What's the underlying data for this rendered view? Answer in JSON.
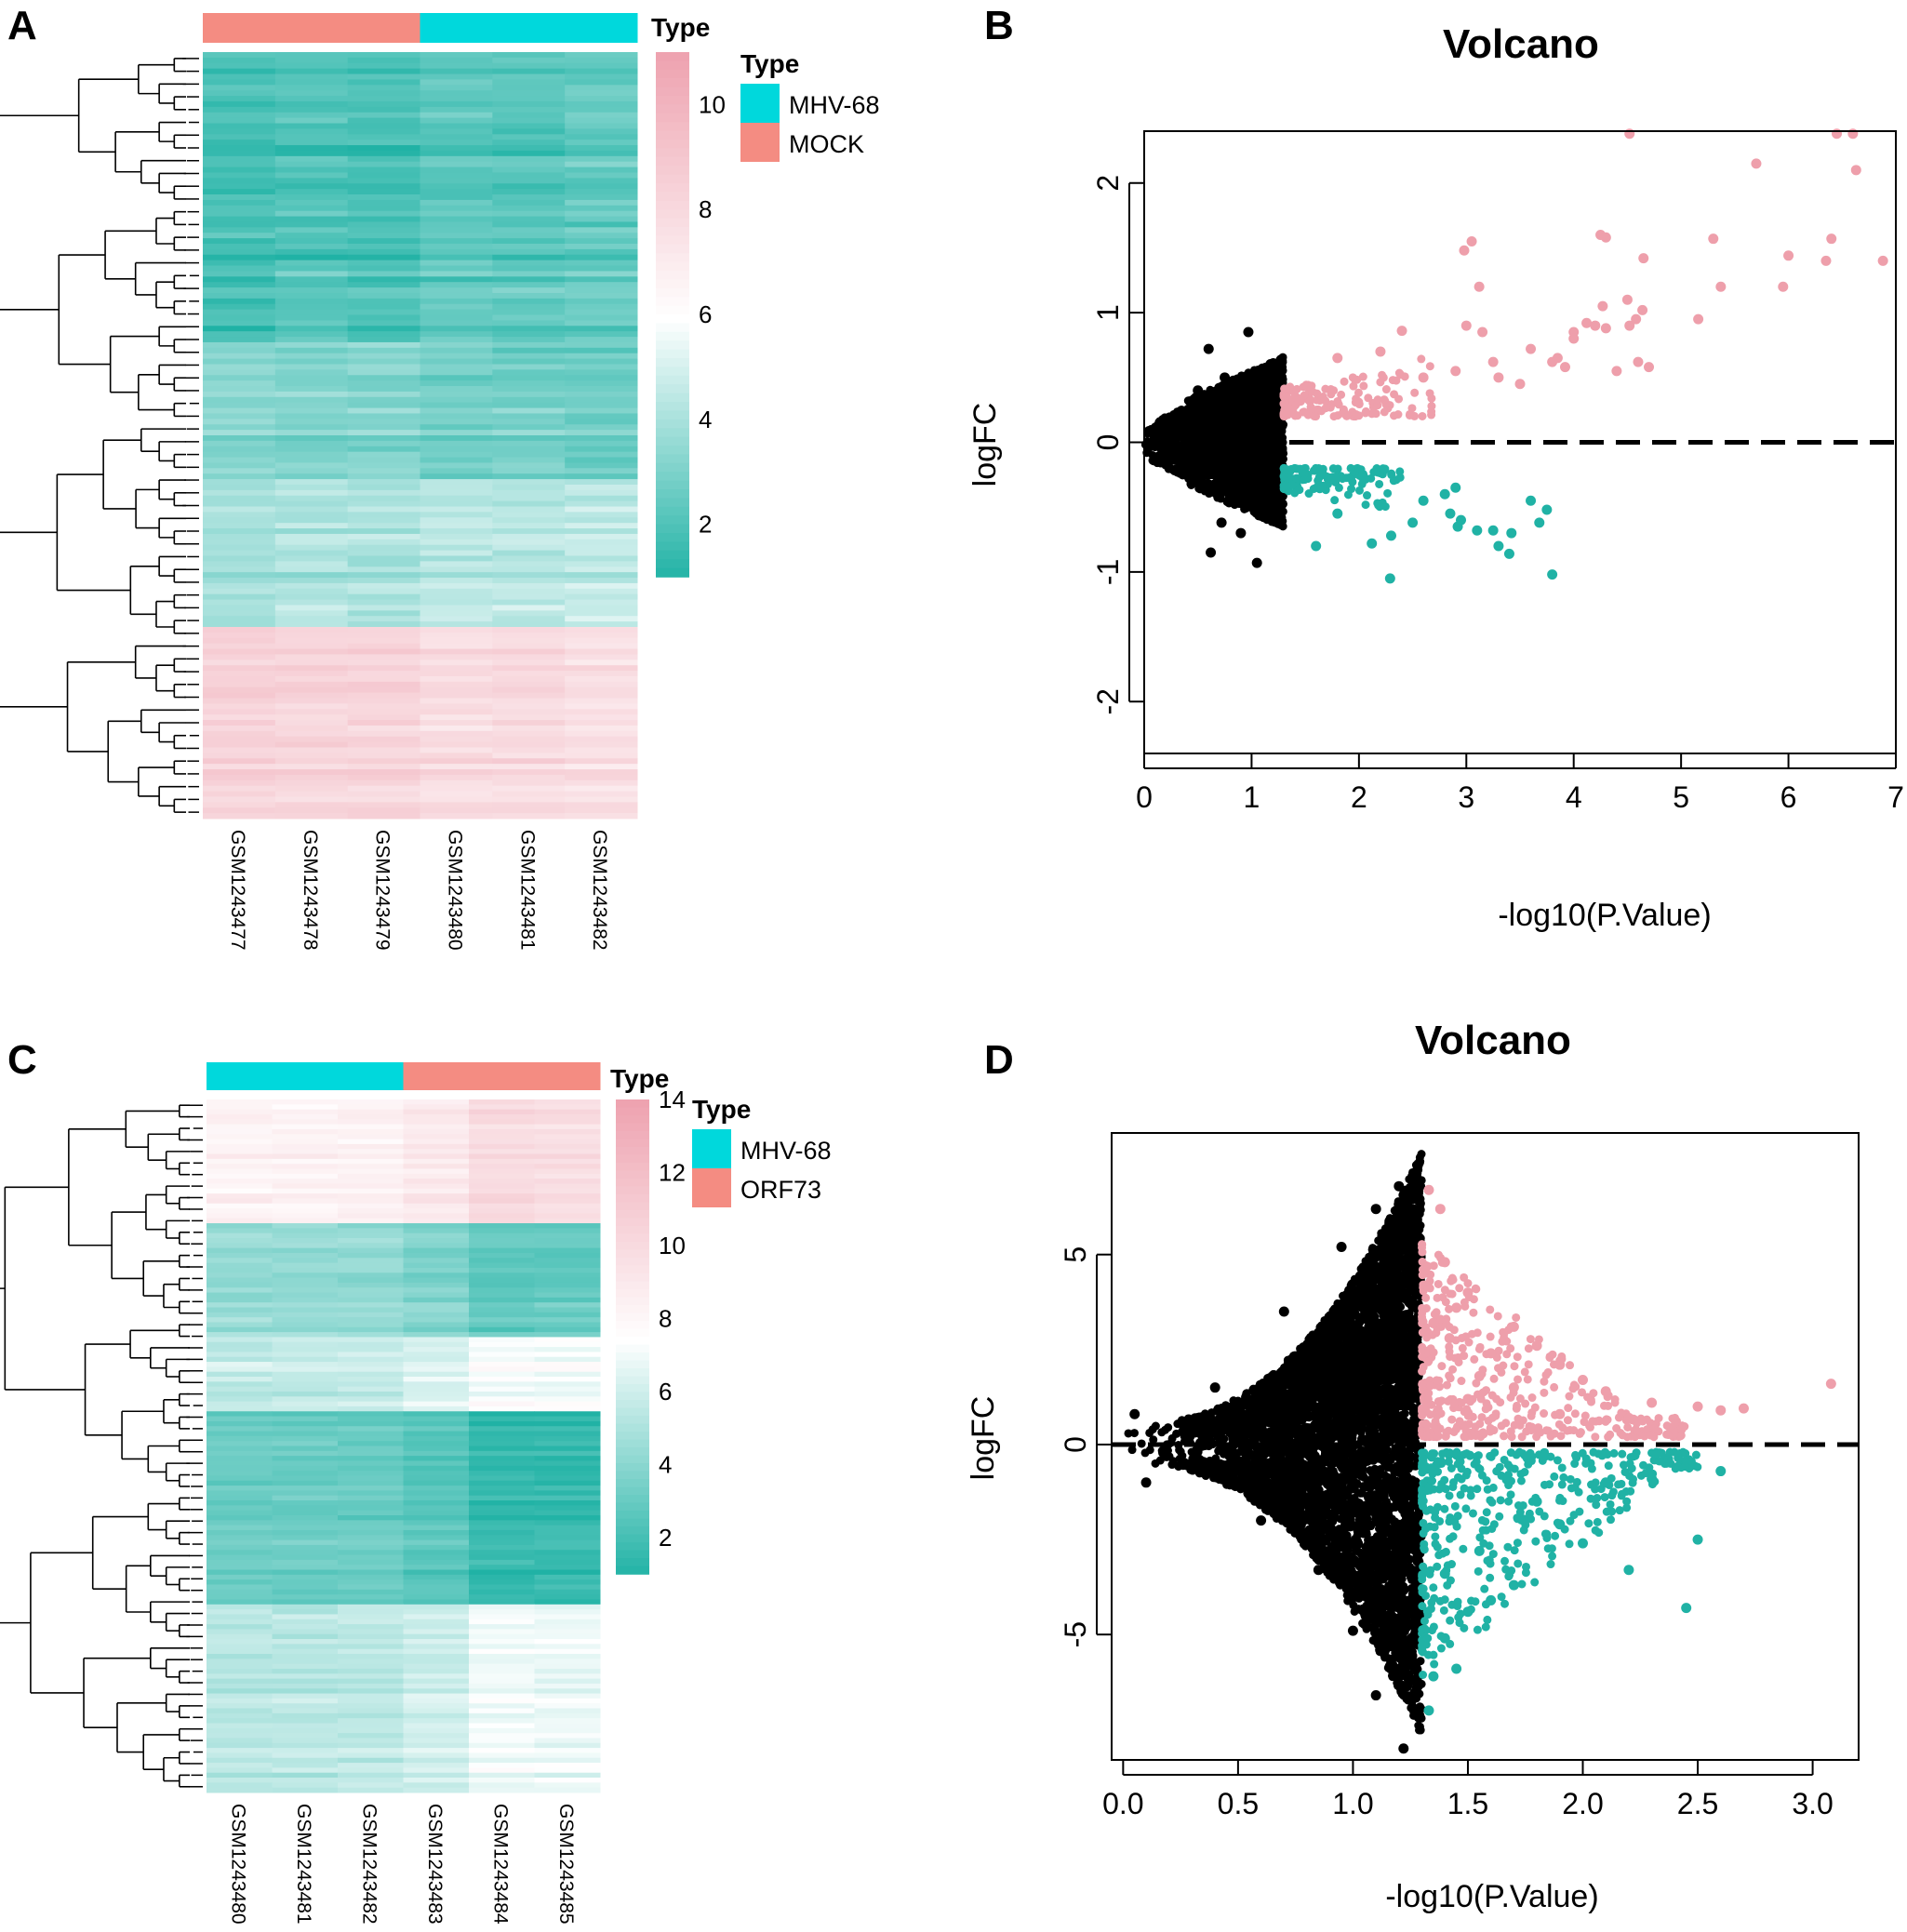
{
  "panels": {
    "A": {
      "label": "A",
      "type_label": "Type",
      "legend_title": "Type",
      "legend": [
        {
          "name": "MHV-68",
          "color": "#00d8dc"
        },
        {
          "name": "MOCK",
          "color": "#f48c82"
        }
      ],
      "samples": [
        "GSM1243477",
        "GSM1243478",
        "GSM1243479",
        "GSM1243480",
        "GSM1243481",
        "GSM1243482"
      ],
      "sample_groups": [
        "MOCK",
        "MOCK",
        "MOCK",
        "MHV-68",
        "MHV-68",
        "MHV-68"
      ],
      "colorbar_ticks": [
        2,
        4,
        6,
        8,
        10
      ],
      "colorbar_range": [
        1,
        11
      ]
    },
    "B": {
      "label": "B",
      "title": "Volcano",
      "xlabel": "-log10(P.Value)",
      "ylabel": "logFC",
      "xticks": [
        0,
        1,
        2,
        3,
        4,
        5,
        6,
        7
      ],
      "yticks": [
        -2,
        -1,
        0,
        1,
        2
      ]
    },
    "C": {
      "label": "C",
      "type_label": "Type",
      "legend_title": "Type",
      "legend": [
        {
          "name": "MHV-68",
          "color": "#00d8dc"
        },
        {
          "name": "ORF73",
          "color": "#f48c82"
        }
      ],
      "samples": [
        "GSM1243480",
        "GSM1243481",
        "GSM1243482",
        "GSM1243483",
        "GSM1243484",
        "GSM1243485"
      ],
      "sample_groups": [
        "MHV-68",
        "MHV-68",
        "MHV-68",
        "ORF73",
        "ORF73",
        "ORF73"
      ],
      "colorbar_ticks": [
        2,
        4,
        6,
        8,
        10,
        12,
        14
      ],
      "colorbar_range": [
        1,
        14
      ]
    },
    "D": {
      "label": "D",
      "title": "Volcano",
      "xlabel": "-log10(P.Value)",
      "ylabel": "logFC",
      "xticks": [
        "0.0",
        "0.5",
        "1.0",
        "1.5",
        "2.0",
        "2.5",
        "3.0"
      ],
      "yticks": [
        -5,
        0,
        5
      ]
    }
  },
  "chart_data": [
    {
      "type": "heatmap",
      "panel": "A",
      "columns": [
        "GSM1243477",
        "GSM1243478",
        "GSM1243479",
        "GSM1243480",
        "GSM1243481",
        "GSM1243482"
      ],
      "column_annotation": [
        "MOCK",
        "MOCK",
        "MOCK",
        "MHV-68",
        "MHV-68",
        "MHV-68"
      ],
      "row_blocks": [
        {
          "rows": 0.38,
          "value": 2.2
        },
        {
          "rows": 0.18,
          "value": 3.2
        },
        {
          "rows": 0.19,
          "value": 4.2
        },
        {
          "rows": 0.25,
          "value": 8.0
        }
      ],
      "color_scale": {
        "low": "#20b2a5",
        "mid": "#ffffff",
        "high": "#eea3b0",
        "range": [
          1,
          11
        ]
      },
      "legend": [
        "MHV-68",
        "MOCK"
      ]
    },
    {
      "type": "scatter",
      "panel": "B",
      "title": "Volcano",
      "xlabel": "-log10(P.Value)",
      "ylabel": "logFC",
      "xlim": [
        0,
        7
      ],
      "ylim": [
        -2.4,
        2.4
      ],
      "threshold_x": 1.3,
      "hline_y": 0,
      "series": [
        {
          "name": "",
          "color": "#000000",
          "points": [
            [
              0.6,
              0.72
            ],
            [
              0.97,
              0.85
            ],
            [
              0.75,
              0.5
            ],
            [
              1.1,
              0.55
            ],
            [
              1.2,
              0.52
            ],
            [
              0.5,
              0.4
            ],
            [
              0.62,
              -0.85
            ],
            [
              1.05,
              -0.93
            ],
            [
              0.9,
              -0.7
            ],
            [
              0.72,
              -0.62
            ],
            [
              1.15,
              -0.55
            ],
            [
              0.3,
              0.2
            ],
            [
              0.2,
              -0.15
            ]
          ]
        },
        {
          "name": "",
          "color": "#ee9fab",
          "points": [
            [
              4.52,
              2.38
            ],
            [
              6.45,
              2.38
            ],
            [
              6.6,
              2.38
            ],
            [
              6.63,
              2.1
            ],
            [
              5.7,
              2.15
            ],
            [
              3.05,
              1.55
            ],
            [
              2.98,
              1.48
            ],
            [
              4.25,
              1.6
            ],
            [
              4.3,
              1.58
            ],
            [
              4.65,
              1.42
            ],
            [
              5.3,
              1.57
            ],
            [
              6.4,
              1.57
            ],
            [
              6.0,
              1.44
            ],
            [
              6.35,
              1.4
            ],
            [
              6.88,
              1.4
            ],
            [
              5.37,
              1.2
            ],
            [
              5.95,
              1.2
            ],
            [
              3.12,
              1.2
            ],
            [
              4.5,
              1.1
            ],
            [
              4.64,
              1.02
            ],
            [
              4.27,
              1.05
            ],
            [
              3.15,
              0.85
            ],
            [
              3.0,
              0.9
            ],
            [
              4.2,
              0.9
            ],
            [
              4.0,
              0.85
            ],
            [
              4.3,
              0.88
            ],
            [
              4.58,
              0.95
            ],
            [
              5.16,
              0.95
            ],
            [
              3.6,
              0.72
            ],
            [
              3.85,
              0.65
            ],
            [
              3.8,
              0.62
            ],
            [
              4.7,
              0.58
            ],
            [
              4.6,
              0.62
            ],
            [
              4.0,
              0.8
            ],
            [
              4.12,
              0.92
            ],
            [
              4.52,
              0.9
            ],
            [
              2.4,
              0.86
            ],
            [
              2.2,
              0.7
            ],
            [
              1.8,
              0.65
            ],
            [
              3.5,
              0.45
            ],
            [
              3.3,
              0.5
            ],
            [
              3.25,
              0.62
            ],
            [
              2.9,
              0.55
            ],
            [
              2.6,
              0.5
            ],
            [
              4.4,
              0.55
            ],
            [
              3.92,
              0.58
            ]
          ]
        },
        {
          "name": "",
          "color": "#20b2a5",
          "points": [
            [
              2.29,
              -1.05
            ],
            [
              3.8,
              -1.02
            ],
            [
              3.4,
              -0.86
            ],
            [
              3.3,
              -0.8
            ],
            [
              1.6,
              -0.8
            ],
            [
              2.12,
              -0.78
            ],
            [
              2.3,
              -0.72
            ],
            [
              2.92,
              -0.65
            ],
            [
              3.1,
              -0.68
            ],
            [
              3.68,
              -0.62
            ],
            [
              3.75,
              -0.52
            ],
            [
              3.6,
              -0.45
            ],
            [
              2.95,
              -0.6
            ],
            [
              2.85,
              -0.55
            ],
            [
              3.25,
              -0.68
            ],
            [
              3.42,
              -0.7
            ],
            [
              2.5,
              -0.62
            ],
            [
              1.8,
              -0.55
            ],
            [
              2.6,
              -0.45
            ],
            [
              2.8,
              -0.4
            ],
            [
              2.9,
              -0.35
            ]
          ]
        }
      ]
    },
    {
      "type": "heatmap",
      "panel": "C",
      "columns": [
        "GSM1243480",
        "GSM1243481",
        "GSM1243482",
        "GSM1243483",
        "GSM1243484",
        "GSM1243485"
      ],
      "column_annotation": [
        "MHV-68",
        "MHV-68",
        "MHV-68",
        "ORF73",
        "ORF73",
        "ORF73"
      ],
      "row_blocks": [
        {
          "rows": 0.18,
          "value": 8.8
        },
        {
          "rows": 0.16,
          "value": 4.0
        },
        {
          "rows": 0.11,
          "value": 6.2
        },
        {
          "rows": 0.28,
          "value": 2.8
        },
        {
          "rows": 0.27,
          "value": 5.8
        }
      ],
      "color_scale": {
        "low": "#20b2a5",
        "mid": "#ffffff",
        "high": "#eea3b0",
        "range": [
          1,
          14
        ]
      },
      "legend": [
        "MHV-68",
        "ORF73"
      ]
    },
    {
      "type": "scatter",
      "panel": "D",
      "title": "Volcano",
      "xlabel": "-log10(P.Value)",
      "ylabel": "logFC",
      "xlim": [
        -0.05,
        3.2
      ],
      "ylim": [
        -8.3,
        8.2
      ],
      "threshold_x": 1.3,
      "hline_y": 0,
      "series": [
        {
          "name": "",
          "color": "#000000",
          "points": [
            [
              1.2,
              6.8
            ],
            [
              1.1,
              6.2
            ],
            [
              0.95,
              5.2
            ],
            [
              0.7,
              3.5
            ],
            [
              0.4,
              1.5
            ],
            [
              0.6,
              -2.0
            ],
            [
              0.85,
              -3.3
            ],
            [
              1.0,
              -4.9
            ],
            [
              1.1,
              -6.6
            ],
            [
              1.22,
              -8.0
            ],
            [
              0.05,
              0.8
            ],
            [
              0.1,
              -1.0
            ]
          ]
        },
        {
          "name": "",
          "color": "#ee9fab",
          "points": [
            [
              3.08,
              1.6
            ],
            [
              1.33,
              6.7
            ],
            [
              1.38,
              6.2
            ],
            [
              1.4,
              4.8
            ],
            [
              1.5,
              4.0
            ],
            [
              1.45,
              3.6
            ],
            [
              1.7,
              3.1
            ],
            [
              1.8,
              2.6
            ],
            [
              1.9,
              2.1
            ],
            [
              2.0,
              1.7
            ],
            [
              2.1,
              1.4
            ],
            [
              2.3,
              1.1
            ],
            [
              2.5,
              1.0
            ],
            [
              2.6,
              0.9
            ],
            [
              2.7,
              0.95
            ],
            [
              1.6,
              2.4
            ],
            [
              1.55,
              1.8
            ],
            [
              1.42,
              2.8
            ],
            [
              1.35,
              3.2
            ],
            [
              1.5,
              1.2
            ],
            [
              1.7,
              1.5
            ],
            [
              1.9,
              0.8
            ],
            [
              2.2,
              0.7
            ]
          ]
        },
        {
          "name": "",
          "color": "#20b2a5",
          "points": [
            [
              2.45,
              -4.3
            ],
            [
              2.6,
              -0.7
            ],
            [
              2.5,
              -2.5
            ],
            [
              2.2,
              -3.3
            ],
            [
              2.0,
              -2.6
            ],
            [
              1.9,
              -2.1
            ],
            [
              1.7,
              -3.7
            ],
            [
              1.6,
              -4.1
            ],
            [
              1.5,
              -4.4
            ],
            [
              1.4,
              -5.1
            ],
            [
              1.35,
              -6.1
            ],
            [
              1.33,
              -7.0
            ],
            [
              1.45,
              -5.9
            ],
            [
              1.8,
              -1.5
            ],
            [
              2.1,
              -1.0
            ],
            [
              2.3,
              -0.9
            ],
            [
              1.55,
              -2.8
            ],
            [
              1.4,
              -3.4
            ]
          ]
        }
      ]
    }
  ]
}
